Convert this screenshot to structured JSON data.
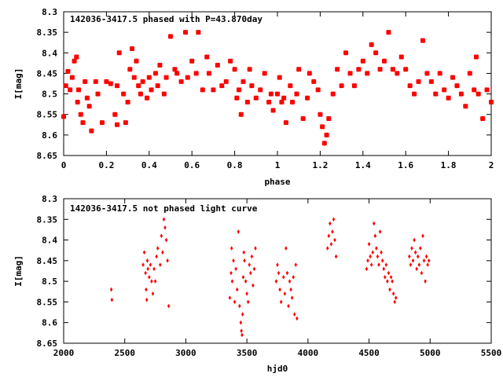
{
  "chart_data": [
    {
      "type": "scatter",
      "title": "142036-3417.5 phased with P=43.870day",
      "xlabel": "phase",
      "ylabel": "I[mag]",
      "xlim": [
        0,
        2
      ],
      "ylim": [
        8.3,
        8.65
      ],
      "y_inverted": true,
      "x_ticks": [
        0,
        0.2,
        0.4,
        0.6,
        0.8,
        1,
        1.2,
        1.4,
        1.6,
        1.8,
        2
      ],
      "x_tick_labels": [
        "0",
        "0.2",
        "0.4",
        "0.6",
        "0.8",
        "1",
        "1.2",
        "1.4",
        "1.6",
        "1.8",
        "2"
      ],
      "y_ticks": [
        8.3,
        8.35,
        8.4,
        8.45,
        8.5,
        8.55,
        8.6,
        8.65
      ],
      "y_tick_labels": [
        "8.3",
        "8.35",
        "8.4",
        "8.45",
        "8.5",
        "8.55",
        "8.6",
        "8.65"
      ],
      "grid": false,
      "marker_color": "#ff0000",
      "series": [
        {
          "points": [
            [
              0.0,
              8.555
            ],
            [
              0.01,
              8.48
            ],
            [
              0.02,
              8.445
            ],
            [
              0.03,
              8.49
            ],
            [
              0.04,
              8.46
            ],
            [
              0.05,
              8.42
            ],
            [
              0.06,
              8.41
            ],
            [
              0.065,
              8.52
            ],
            [
              0.07,
              8.49
            ],
            [
              0.08,
              8.55
            ],
            [
              0.09,
              8.57
            ],
            [
              0.1,
              8.47
            ],
            [
              0.11,
              8.51
            ],
            [
              0.12,
              8.53
            ],
            [
              0.13,
              8.59
            ],
            [
              0.15,
              8.47
            ],
            [
              0.16,
              8.5
            ],
            [
              0.18,
              8.57
            ],
            [
              0.2,
              8.47
            ],
            [
              0.22,
              8.475
            ],
            [
              0.24,
              8.55
            ],
            [
              0.25,
              8.48
            ],
            [
              0.25,
              8.575
            ],
            [
              0.26,
              8.4
            ],
            [
              0.28,
              8.5
            ],
            [
              0.29,
              8.57
            ],
            [
              0.3,
              8.52
            ],
            [
              0.31,
              8.44
            ],
            [
              0.32,
              8.39
            ],
            [
              0.33,
              8.46
            ],
            [
              0.34,
              8.42
            ],
            [
              0.35,
              8.48
            ],
            [
              0.36,
              8.5
            ],
            [
              0.37,
              8.47
            ],
            [
              0.39,
              8.51
            ],
            [
              0.4,
              8.46
            ],
            [
              0.41,
              8.49
            ],
            [
              0.43,
              8.45
            ],
            [
              0.44,
              8.48
            ],
            [
              0.45,
              8.43
            ],
            [
              0.47,
              8.5
            ],
            [
              0.48,
              8.46
            ],
            [
              0.5,
              8.36
            ],
            [
              0.52,
              8.44
            ],
            [
              0.53,
              8.45
            ],
            [
              0.55,
              8.47
            ],
            [
              0.57,
              8.35
            ],
            [
              0.58,
              8.46
            ],
            [
              0.6,
              8.42
            ],
            [
              0.62,
              8.45
            ],
            [
              0.63,
              8.35
            ],
            [
              0.65,
              8.49
            ],
            [
              0.67,
              8.41
            ],
            [
              0.68,
              8.45
            ],
            [
              0.7,
              8.49
            ],
            [
              0.72,
              8.43
            ],
            [
              0.74,
              8.48
            ],
            [
              0.76,
              8.47
            ],
            [
              0.78,
              8.42
            ],
            [
              0.8,
              8.44
            ],
            [
              0.81,
              8.51
            ],
            [
              0.82,
              8.49
            ],
            [
              0.83,
              8.55
            ],
            [
              0.84,
              8.47
            ],
            [
              0.86,
              8.52
            ],
            [
              0.87,
              8.44
            ],
            [
              0.88,
              8.48
            ],
            [
              0.9,
              8.51
            ],
            [
              0.92,
              8.49
            ],
            [
              0.94,
              8.45
            ],
            [
              0.96,
              8.52
            ],
            [
              0.97,
              8.5
            ],
            [
              0.98,
              8.54
            ],
            [
              1.0,
              8.5
            ],
            [
              1.01,
              8.46
            ],
            [
              1.02,
              8.52
            ],
            [
              1.03,
              8.51
            ],
            [
              1.04,
              8.57
            ],
            [
              1.06,
              8.48
            ],
            [
              1.07,
              8.52
            ],
            [
              1.09,
              8.5
            ],
            [
              1.1,
              8.44
            ],
            [
              1.12,
              8.56
            ],
            [
              1.14,
              8.51
            ],
            [
              1.15,
              8.45
            ],
            [
              1.17,
              8.47
            ],
            [
              1.19,
              8.49
            ],
            [
              1.2,
              8.55
            ],
            [
              1.21,
              8.58
            ],
            [
              1.22,
              8.62
            ],
            [
              1.23,
              8.6
            ],
            [
              1.24,
              8.56
            ],
            [
              1.26,
              8.5
            ],
            [
              1.28,
              8.44
            ],
            [
              1.3,
              8.48
            ],
            [
              1.32,
              8.4
            ],
            [
              1.34,
              8.45
            ],
            [
              1.36,
              8.48
            ],
            [
              1.38,
              8.44
            ],
            [
              1.4,
              8.42
            ],
            [
              1.42,
              8.45
            ],
            [
              1.44,
              8.38
            ],
            [
              1.46,
              8.4
            ],
            [
              1.48,
              8.44
            ],
            [
              1.5,
              8.42
            ],
            [
              1.52,
              8.35
            ],
            [
              1.54,
              8.44
            ],
            [
              1.56,
              8.45
            ],
            [
              1.58,
              8.41
            ],
            [
              1.6,
              8.44
            ],
            [
              1.62,
              8.48
            ],
            [
              1.64,
              8.5
            ],
            [
              1.66,
              8.47
            ],
            [
              1.68,
              8.37
            ],
            [
              1.7,
              8.45
            ],
            [
              1.72,
              8.47
            ],
            [
              1.74,
              8.5
            ],
            [
              1.76,
              8.45
            ],
            [
              1.78,
              8.49
            ],
            [
              1.8,
              8.51
            ],
            [
              1.82,
              8.46
            ],
            [
              1.84,
              8.48
            ],
            [
              1.86,
              8.5
            ],
            [
              1.88,
              8.53
            ],
            [
              1.9,
              8.45
            ],
            [
              1.92,
              8.49
            ],
            [
              1.93,
              8.41
            ],
            [
              1.94,
              8.5
            ],
            [
              1.96,
              8.56
            ],
            [
              1.98,
              8.49
            ],
            [
              2.0,
              8.52
            ]
          ]
        }
      ]
    },
    {
      "type": "scatter",
      "title": "142036-3417.5 not phased light curve",
      "xlabel": "hjd0",
      "ylabel": "I[mag]",
      "xlim": [
        2000,
        5500
      ],
      "ylim": [
        8.3,
        8.65
      ],
      "y_inverted": true,
      "x_ticks": [
        2000,
        2500,
        3000,
        3500,
        4000,
        4500,
        5000,
        5500
      ],
      "x_tick_labels": [
        "2000",
        "2500",
        "3000",
        "3500",
        "4000",
        "4500",
        "5000",
        "5500"
      ],
      "y_ticks": [
        8.3,
        8.35,
        8.4,
        8.45,
        8.5,
        8.55,
        8.6,
        8.65
      ],
      "y_tick_labels": [
        "8.3",
        "8.35",
        "8.4",
        "8.45",
        "8.5",
        "8.55",
        "8.6",
        "8.65"
      ],
      "grid": false,
      "marker_color": "#ff0000",
      "series": [
        {
          "points": [
            [
              2390,
              8.52
            ],
            [
              2395,
              8.545
            ],
            [
              2650,
              8.46
            ],
            [
              2660,
              8.43
            ],
            [
              2670,
              8.48
            ],
            [
              2675,
              8.52
            ],
            [
              2680,
              8.545
            ],
            [
              2685,
              8.45
            ],
            [
              2690,
              8.47
            ],
            [
              2700,
              8.49
            ],
            [
              2710,
              8.46
            ],
            [
              2720,
              8.5
            ],
            [
              2730,
              8.53
            ],
            [
              2740,
              8.47
            ],
            [
              2750,
              8.5
            ],
            [
              2760,
              8.44
            ],
            [
              2770,
              8.42
            ],
            [
              2790,
              8.46
            ],
            [
              2800,
              8.39
            ],
            [
              2810,
              8.43
            ],
            [
              2820,
              8.35
            ],
            [
              2830,
              8.37
            ],
            [
              2840,
              8.4
            ],
            [
              2850,
              8.45
            ],
            [
              2860,
              8.56
            ],
            [
              3360,
              8.54
            ],
            [
              3370,
              8.48
            ],
            [
              3375,
              8.42
            ],
            [
              3380,
              8.5
            ],
            [
              3390,
              8.45
            ],
            [
              3400,
              8.55
            ],
            [
              3410,
              8.47
            ],
            [
              3420,
              8.52
            ],
            [
              3430,
              8.38
            ],
            [
              3440,
              8.56
            ],
            [
              3450,
              8.6
            ],
            [
              3455,
              8.62
            ],
            [
              3460,
              8.63
            ],
            [
              3465,
              8.58
            ],
            [
              3470,
              8.49
            ],
            [
              3475,
              8.43
            ],
            [
              3480,
              8.45
            ],
            [
              3490,
              8.5
            ],
            [
              3500,
              8.53
            ],
            [
              3510,
              8.55
            ],
            [
              3520,
              8.46
            ],
            [
              3530,
              8.48
            ],
            [
              3540,
              8.44
            ],
            [
              3550,
              8.51
            ],
            [
              3560,
              8.47
            ],
            [
              3570,
              8.42
            ],
            [
              3740,
              8.5
            ],
            [
              3750,
              8.46
            ],
            [
              3760,
              8.48
            ],
            [
              3770,
              8.52
            ],
            [
              3780,
              8.55
            ],
            [
              3800,
              8.49
            ],
            [
              3810,
              8.53
            ],
            [
              3820,
              8.42
            ],
            [
              3830,
              8.48
            ],
            [
              3840,
              8.56
            ],
            [
              3850,
              8.5
            ],
            [
              3860,
              8.52
            ],
            [
              3870,
              8.54
            ],
            [
              3880,
              8.49
            ],
            [
              3890,
              8.58
            ],
            [
              3900,
              8.46
            ],
            [
              3910,
              8.59
            ],
            [
              4160,
              8.42
            ],
            [
              4170,
              8.39
            ],
            [
              4180,
              8.36
            ],
            [
              4190,
              8.41
            ],
            [
              4200,
              8.38
            ],
            [
              4210,
              8.35
            ],
            [
              4220,
              8.4
            ],
            [
              4230,
              8.44
            ],
            [
              4480,
              8.47
            ],
            [
              4490,
              8.45
            ],
            [
              4500,
              8.41
            ],
            [
              4510,
              8.44
            ],
            [
              4520,
              8.46
            ],
            [
              4530,
              8.43
            ],
            [
              4540,
              8.36
            ],
            [
              4550,
              8.39
            ],
            [
              4560,
              8.42
            ],
            [
              4570,
              8.44
            ],
            [
              4580,
              8.46
            ],
            [
              4590,
              8.38
            ],
            [
              4600,
              8.43
            ],
            [
              4610,
              8.45
            ],
            [
              4620,
              8.47
            ],
            [
              4630,
              8.49
            ],
            [
              4640,
              8.46
            ],
            [
              4650,
              8.5
            ],
            [
              4660,
              8.48
            ],
            [
              4670,
              8.52
            ],
            [
              4680,
              8.49
            ],
            [
              4690,
              8.5
            ],
            [
              4700,
              8.53
            ],
            [
              4710,
              8.55
            ],
            [
              4720,
              8.54
            ],
            [
              4830,
              8.44
            ],
            [
              4840,
              8.46
            ],
            [
              4850,
              8.42
            ],
            [
              4860,
              8.45
            ],
            [
              4870,
              8.4
            ],
            [
              4880,
              8.43
            ],
            [
              4890,
              8.47
            ],
            [
              4900,
              8.44
            ],
            [
              4910,
              8.46
            ],
            [
              4920,
              8.42
            ],
            [
              4930,
              8.48
            ],
            [
              4940,
              8.39
            ],
            [
              4950,
              8.45
            ],
            [
              4960,
              8.5
            ],
            [
              4970,
              8.44
            ],
            [
              4980,
              8.46
            ],
            [
              4990,
              8.45
            ]
          ]
        }
      ]
    }
  ]
}
